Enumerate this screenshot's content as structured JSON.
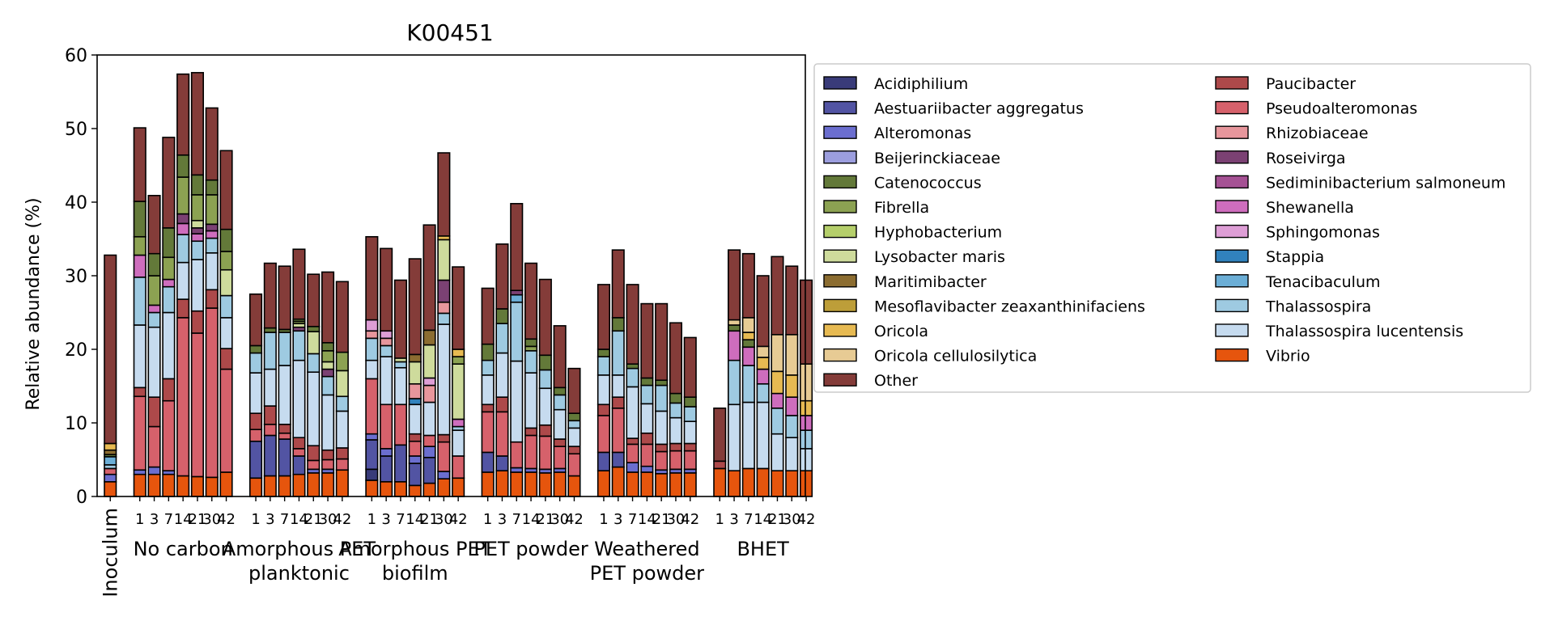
{
  "chart_data": {
    "type": "bar",
    "stacked": true,
    "title": "K00451",
    "ylabel": "Relative abundance (%)",
    "xlabel": "",
    "ylim": [
      0,
      60
    ],
    "yticks": [
      0,
      10,
      20,
      30,
      40,
      50,
      60
    ],
    "grid": false,
    "legend_position": "outside-right",
    "species": [
      {
        "name": "Acidiphilium",
        "color": "#393b79"
      },
      {
        "name": "Aestuariibacter aggregatus",
        "color": "#5254a3"
      },
      {
        "name": "Alteromonas",
        "color": "#6b6ecf"
      },
      {
        "name": "Beijerinckiaceae",
        "color": "#9c9ede"
      },
      {
        "name": "Catenococcus",
        "color": "#637939"
      },
      {
        "name": "Fibrella",
        "color": "#8ca252"
      },
      {
        "name": "Hyphobacterium",
        "color": "#b5cf6b"
      },
      {
        "name": "Lysobacter maris",
        "color": "#cedb9c"
      },
      {
        "name": "Maritimibacter",
        "color": "#8c6d31"
      },
      {
        "name": "Mesoflavibacter zeaxanthinifaciens",
        "color": "#bd9e39"
      },
      {
        "name": "Oricola",
        "color": "#e7ba52"
      },
      {
        "name": "Oricola cellulosilytica",
        "color": "#e7cb94"
      },
      {
        "name": "Other",
        "color": "#843c39"
      },
      {
        "name": "Paucibacter",
        "color": "#ad494a"
      },
      {
        "name": "Pseudoalteromonas",
        "color": "#d6616b"
      },
      {
        "name": "Rhizobiaceae",
        "color": "#e7969c"
      },
      {
        "name": "Roseivirga",
        "color": "#7b4173"
      },
      {
        "name": "Sediminibacterium salmoneum",
        "color": "#a55194"
      },
      {
        "name": "Shewanella",
        "color": "#ce6dbd"
      },
      {
        "name": "Sphingomonas",
        "color": "#de9ed6"
      },
      {
        "name": "Stappia",
        "color": "#3182bd"
      },
      {
        "name": "Tenacibaculum",
        "color": "#6baed6"
      },
      {
        "name": "Thalassospira",
        "color": "#9ecae1"
      },
      {
        "name": "Thalassospira lucentensis",
        "color": "#c6dbef"
      },
      {
        "name": "Vibrio",
        "color": "#e6550d"
      }
    ],
    "groups": [
      {
        "label": "Inoculum",
        "rotated": true,
        "bars": [
          {
            "x": "",
            "s": {
              "Vibrio": 2.0,
              "Alteromonas": 1.0,
              "Pseudoalteromonas": 0.8,
              "Oricola": 0.9,
              "Maritimibacter": 0.6,
              "Tenacibaculum": 1.1,
              "Thalassospira": 0.5,
              "Catenococcus": 0.3,
              "Other": 25.6
            }
          }
        ]
      },
      {
        "label": "No carbon",
        "bars": [
          {
            "x": "1",
            "s": {
              "Vibrio": 3.0,
              "Alteromonas": 0.6,
              "Thalassospira lucentensis": 8.5,
              "Thalassospira": 6.5,
              "Paucibacter": 1.2,
              "Pseudoalteromonas": 10.0,
              "Shewanella": 3.0,
              "Catenococcus": 4.8,
              "Fibrella": 2.5,
              "Other": 10.0
            }
          },
          {
            "x": "3",
            "s": {
              "Vibrio": 3.0,
              "Alteromonas": 1.0,
              "Thalassospira lucentensis": 9.5,
              "Thalassospira": 2.0,
              "Paucibacter": 4.0,
              "Pseudoalteromonas": 5.5,
              "Shewanella": 1.0,
              "Catenococcus": 3.0,
              "Fibrella": 4.0,
              "Other": 7.9
            }
          },
          {
            "x": "7",
            "s": {
              "Vibrio": 3.0,
              "Alteromonas": 0.5,
              "Thalassospira lucentensis": 9.0,
              "Thalassospira": 3.5,
              "Paucibacter": 3.0,
              "Pseudoalteromonas": 9.5,
              "Shewanella": 1.0,
              "Catenococcus": 4.0,
              "Fibrella": 3.0,
              "Other": 12.3
            }
          },
          {
            "x": "14",
            "s": {
              "Vibrio": 2.8,
              "Thalassospira lucentensis": 5.0,
              "Thalassospira": 3.8,
              "Paucibacter": 2.5,
              "Pseudoalteromonas": 21.5,
              "Shewanella": 1.5,
              "Roseivirga": 1.3,
              "Catenococcus": 3.0,
              "Fibrella": 5.0,
              "Other": 11.0
            }
          },
          {
            "x": "21",
            "s": {
              "Vibrio": 2.7,
              "Thalassospira lucentensis": 7.0,
              "Thalassospira": 2.5,
              "Paucibacter": 3.0,
              "Pseudoalteromonas": 19.5,
              "Shewanella": 1.0,
              "Roseivirga": 0.8,
              "Lysobacter maris": 1.0,
              "Catenococcus": 2.7,
              "Fibrella": 3.5,
              "Other": 13.9
            }
          },
          {
            "x": "30",
            "s": {
              "Vibrio": 2.6,
              "Thalassospira lucentensis": 5.0,
              "Thalassospira": 2.0,
              "Paucibacter": 2.5,
              "Pseudoalteromonas": 23.0,
              "Roseivirga": 0.9,
              "Shewanella": 1.0,
              "Catenococcus": 2.0,
              "Fibrella": 4.0,
              "Other": 9.8
            }
          },
          {
            "x": "42",
            "s": {
              "Vibrio": 3.3,
              "Thalassospira lucentensis": 4.2,
              "Thalassospira": 3.0,
              "Paucibacter": 2.8,
              "Pseudoalteromonas": 14.0,
              "Lysobacter maris": 3.5,
              "Catenococcus": 3.0,
              "Fibrella": 2.5,
              "Other": 10.7
            }
          }
        ]
      },
      {
        "label": "Amorphous PET\nplanktonic",
        "bars": [
          {
            "x": "1",
            "s": {
              "Vibrio": 2.5,
              "Aestuariibacter aggregatus": 5.0,
              "Thalassospira lucentensis": 5.5,
              "Thalassospira": 2.7,
              "Paucibacter": 2.2,
              "Pseudoalteromonas": 1.6,
              "Catenococcus": 1.0,
              "Other": 7.0
            }
          },
          {
            "x": "3",
            "s": {
              "Vibrio": 2.8,
              "Aestuariibacter aggregatus": 5.5,
              "Thalassospira lucentensis": 5.0,
              "Thalassospira": 5.0,
              "Paucibacter": 2.5,
              "Pseudoalteromonas": 1.5,
              "Catenococcus": 0.6,
              "Other": 8.8
            }
          },
          {
            "x": "7",
            "s": {
              "Vibrio": 2.8,
              "Aestuariibacter aggregatus": 5.0,
              "Thalassospira lucentensis": 8.0,
              "Thalassospira": 4.5,
              "Paucibacter": 1.2,
              "Pseudoalteromonas": 0.8,
              "Catenococcus": 0.4,
              "Other": 8.6
            }
          },
          {
            "x": "14",
            "s": {
              "Vibrio": 3.0,
              "Aestuariibacter aggregatus": 2.5,
              "Thalassospira lucentensis": 10.5,
              "Thalassospira": 4.0,
              "Paucibacter": 1.5,
              "Pseudoalteromonas": 1.0,
              "Roseivirga": 0.5,
              "Catenococcus": 0.3,
              "Fibrella": 0.3,
              "Lysobacter maris": 0.5,
              "Other": 9.5
            }
          },
          {
            "x": "21",
            "s": {
              "Vibrio": 3.2,
              "Alteromonas": 0.5,
              "Thalassospira lucentensis": 10.0,
              "Thalassospira": 2.5,
              "Paucibacter": 2.0,
              "Pseudoalteromonas": 1.2,
              "Catenococcus": 0.7,
              "Lysobacter maris": 3.0,
              "Other": 7.1
            }
          },
          {
            "x": "30",
            "s": {
              "Vibrio": 3.2,
              "Alteromonas": 0.5,
              "Thalassospira lucentensis": 7.5,
              "Thalassospira": 2.5,
              "Paucibacter": 1.3,
              "Pseudoalteromonas": 1.3,
              "Roseivirga": 1.0,
              "Catenococcus": 1.1,
              "Fibrella": 1.5,
              "Lysobacter maris": 1.0,
              "Other": 9.6
            }
          },
          {
            "x": "42",
            "s": {
              "Vibrio": 3.6,
              "Thalassospira lucentensis": 5.0,
              "Thalassospira": 2.0,
              "Paucibacter": 1.5,
              "Pseudoalteromonas": 1.5,
              "Fibrella": 2.5,
              "Lysobacter maris": 3.5,
              "Other": 9.6
            }
          }
        ]
      },
      {
        "label": "Amorphous PET\nbiofilm",
        "bars": [
          {
            "x": "1",
            "s": {
              "Vibrio": 2.2,
              "Aestuariibacter aggregatus": 4.0,
              "Alteromonas": 0.8,
              "Pseudoalteromonas": 7.5,
              "Thalassospira lucentensis": 2.5,
              "Thalassospira": 3.0,
              "Rhizobiaceae": 1.0,
              "Sphingomonas": 1.5,
              "Acidiphilium": 1.5,
              "Other": 11.3
            }
          },
          {
            "x": "3",
            "s": {
              "Vibrio": 2.0,
              "Aestuariibacter aggregatus": 3.5,
              "Alteromonas": 1.0,
              "Pseudoalteromonas": 6.0,
              "Thalassospira lucentensis": 6.5,
              "Thalassospira": 1.5,
              "Sphingomonas": 1.0,
              "Rhizobiaceae": 1.0,
              "Other": 11.2
            }
          },
          {
            "x": "7",
            "s": {
              "Vibrio": 2.0,
              "Aestuariibacter aggregatus": 5.0,
              "Pseudoalteromonas": 5.5,
              "Thalassospira lucentensis": 5.0,
              "Thalassospira": 0.8,
              "Lysobacter maris": 0.5,
              "Other": 10.6
            }
          },
          {
            "x": "14",
            "s": {
              "Vibrio": 1.5,
              "Aestuariibacter aggregatus": 3.0,
              "Alteromonas": 1.0,
              "Paucibacter": 1.0,
              "Pseudoalteromonas": 2.0,
              "Thalassospira lucentensis": 4.0,
              "Lysobacter maris": 3.0,
              "Maritimibacter": 1.0,
              "Rhizobiaceae": 2.0,
              "Stappia": 0.8,
              "Other": 13.0
            }
          },
          {
            "x": "21",
            "s": {
              "Vibrio": 1.8,
              "Aestuariibacter aggregatus": 3.5,
              "Alteromonas": 1.5,
              "Pseudoalteromonas": 1.5,
              "Thalassospira lucentensis": 4.5,
              "Lysobacter maris": 4.5,
              "Maritimibacter": 2.0,
              "Rhizobiaceae": 2.3,
              "Sphingomonas": 1.0,
              "Other": 14.3
            }
          },
          {
            "x": "30",
            "s": {
              "Vibrio": 2.4,
              "Alteromonas": 1.0,
              "Paucibacter": 1.0,
              "Pseudoalteromonas": 4.0,
              "Thalassospira lucentensis": 15.0,
              "Thalassospira": 1.5,
              "Roseivirga": 3.0,
              "Lysobacter maris": 5.5,
              "Rhizobiaceae": 1.5,
              "Oricola": 0.5,
              "Other": 11.3
            }
          },
          {
            "x": "42",
            "s": {
              "Vibrio": 2.5,
              "Pseudoalteromonas": 3.0,
              "Thalassospira lucentensis": 3.5,
              "Thalassospira": 0.5,
              "Shewanella": 1.0,
              "Lysobacter maris": 7.5,
              "Oricola": 1.0,
              "Fibrella": 1.0,
              "Other": 11.2
            }
          }
        ]
      },
      {
        "label": "PET powder",
        "bars": [
          {
            "x": "1",
            "s": {
              "Vibrio": 3.3,
              "Aestuariibacter aggregatus": 2.7,
              "Pseudoalteromonas": 5.5,
              "Thalassospira lucentensis": 4.0,
              "Thalassospira": 2.0,
              "Paucibacter": 1.0,
              "Catenococcus": 2.2,
              "Other": 7.6
            }
          },
          {
            "x": "3",
            "s": {
              "Vibrio": 3.5,
              "Aestuariibacter aggregatus": 2.0,
              "Pseudoalteromonas": 6.0,
              "Thalassospira lucentensis": 6.0,
              "Thalassospira": 4.0,
              "Paucibacter": 2.0,
              "Catenococcus": 2.0,
              "Other": 8.8
            }
          },
          {
            "x": "7",
            "s": {
              "Vibrio": 3.3,
              "Alteromonas": 0.6,
              "Pseudoalteromonas": 3.5,
              "Thalassospira lucentensis": 11.0,
              "Thalassospira": 8.0,
              "Tenacibaculum": 1.0,
              "Roseivirga": 0.6,
              "Other": 11.8
            }
          },
          {
            "x": "14",
            "s": {
              "Vibrio": 3.3,
              "Alteromonas": 0.5,
              "Pseudoalteromonas": 4.5,
              "Thalassospira lucentensis": 7.5,
              "Thalassospira": 3.0,
              "Paucibacter": 1.0,
              "Catenococcus": 1.0,
              "Fibrella": 0.6,
              "Other": 10.3
            }
          },
          {
            "x": "21",
            "s": {
              "Vibrio": 3.2,
              "Alteromonas": 0.5,
              "Pseudoalteromonas": 4.5,
              "Thalassospira lucentensis": 5.0,
              "Thalassospira": 2.5,
              "Paucibacter": 1.5,
              "Catenococcus": 2.0,
              "Other": 10.3
            }
          },
          {
            "x": "30",
            "s": {
              "Vibrio": 3.3,
              "Alteromonas": 0.5,
              "Pseudoalteromonas": 3.0,
              "Thalassospira lucentensis": 4.0,
              "Thalassospira": 2.0,
              "Paucibacter": 1.0,
              "Catenococcus": 1.0,
              "Other": 8.4
            }
          },
          {
            "x": "42",
            "s": {
              "Vibrio": 2.8,
              "Pseudoalteromonas": 3.0,
              "Thalassospira lucentensis": 2.5,
              "Thalassospira": 1.0,
              "Paucibacter": 1.0,
              "Catenococcus": 1.0,
              "Other": 6.1
            }
          }
        ]
      },
      {
        "label": "Weathered\nPET powder",
        "bars": [
          {
            "x": "1",
            "s": {
              "Vibrio": 3.5,
              "Aestuariibacter aggregatus": 2.5,
              "Pseudoalteromonas": 5.0,
              "Thalassospira lucentensis": 4.0,
              "Thalassospira": 2.5,
              "Paucibacter": 1.5,
              "Catenococcus": 1.0,
              "Other": 8.8
            }
          },
          {
            "x": "3",
            "s": {
              "Vibrio": 4.0,
              "Aestuariibacter aggregatus": 2.0,
              "Pseudoalteromonas": 6.0,
              "Thalassospira lucentensis": 3.0,
              "Thalassospira": 6.0,
              "Paucibacter": 1.5,
              "Catenococcus": 1.8,
              "Other": 9.2
            }
          },
          {
            "x": "7",
            "s": {
              "Vibrio": 3.3,
              "Alteromonas": 1.3,
              "Pseudoalteromonas": 2.5,
              "Thalassospira lucentensis": 7.0,
              "Thalassospira": 2.5,
              "Paucibacter": 0.8,
              "Catenococcus": 0.6,
              "Other": 10.8
            }
          },
          {
            "x": "14",
            "s": {
              "Vibrio": 3.3,
              "Alteromonas": 0.8,
              "Pseudoalteromonas": 3.0,
              "Thalassospira lucentensis": 4.0,
              "Thalassospira": 2.5,
              "Paucibacter": 1.5,
              "Catenococcus": 1.0,
              "Other": 10.1
            }
          },
          {
            "x": "21",
            "s": {
              "Vibrio": 3.1,
              "Alteromonas": 0.5,
              "Pseudoalteromonas": 2.5,
              "Thalassospira lucentensis": 4.5,
              "Thalassospira": 3.5,
              "Paucibacter": 1.0,
              "Catenococcus": 0.7,
              "Other": 10.4
            }
          },
          {
            "x": "30",
            "s": {
              "Vibrio": 3.2,
              "Alteromonas": 0.5,
              "Pseudoalteromonas": 2.5,
              "Thalassospira lucentensis": 3.5,
              "Thalassospira": 2.0,
              "Paucibacter": 1.0,
              "Catenococcus": 1.3,
              "Other": 9.6
            }
          },
          {
            "x": "42",
            "s": {
              "Vibrio": 3.2,
              "Alteromonas": 0.5,
              "Pseudoalteromonas": 2.5,
              "Thalassospira lucentensis": 3.0,
              "Thalassospira": 2.0,
              "Paucibacter": 1.0,
              "Catenococcus": 1.3,
              "Other": 8.1
            }
          }
        ]
      },
      {
        "label": "BHET",
        "bars": [
          {
            "x": "1",
            "s": {
              "Vibrio": 3.8,
              "Paucibacter": 1.0,
              "Other": 7.2
            }
          },
          {
            "x": "3",
            "s": {
              "Vibrio": 3.5,
              "Thalassospira lucentensis": 9.0,
              "Thalassospira": 6.0,
              "Shewanella": 4.0,
              "Oricola cellulosilytica": 0.7,
              "Catenococcus": 0.8,
              "Other": 9.5
            }
          },
          {
            "x": "7",
            "s": {
              "Vibrio": 3.8,
              "Thalassospira lucentensis": 9.0,
              "Thalassospira": 5.0,
              "Shewanella": 2.5,
              "Oricola cellulosilytica": 2.0,
              "Oricola": 1.0,
              "Catenococcus": 1.0,
              "Other": 8.7
            }
          },
          {
            "x": "14",
            "s": {
              "Vibrio": 3.8,
              "Thalassospira lucentensis": 9.0,
              "Thalassospira": 2.5,
              "Shewanella": 2.0,
              "Oricola cellulosilytica": 1.5,
              "Oricola": 1.6,
              "Other": 9.6
            }
          },
          {
            "x": "21",
            "s": {
              "Vibrio": 3.5,
              "Thalassospira lucentensis": 5.0,
              "Thalassospira": 3.5,
              "Shewanella": 2.0,
              "Oricola cellulosilytica": 5.0,
              "Oricola": 3.0,
              "Other": 10.6
            }
          },
          {
            "x": "30",
            "s": {
              "Vibrio": 3.5,
              "Thalassospira lucentensis": 4.5,
              "Thalassospira": 3.0,
              "Shewanella": 2.5,
              "Oricola cellulosilytica": 5.5,
              "Oricola": 3.0,
              "Other": 9.3
            }
          },
          {
            "x": "42",
            "s": {
              "Vibrio": 3.5,
              "Thalassospira lucentensis": 3.0,
              "Thalassospira": 2.5,
              "Shewanella": 2.0,
              "Oricola cellulosilytica": 5.0,
              "Oricola": 2.0,
              "Other": 11.4
            }
          }
        ]
      }
    ]
  }
}
